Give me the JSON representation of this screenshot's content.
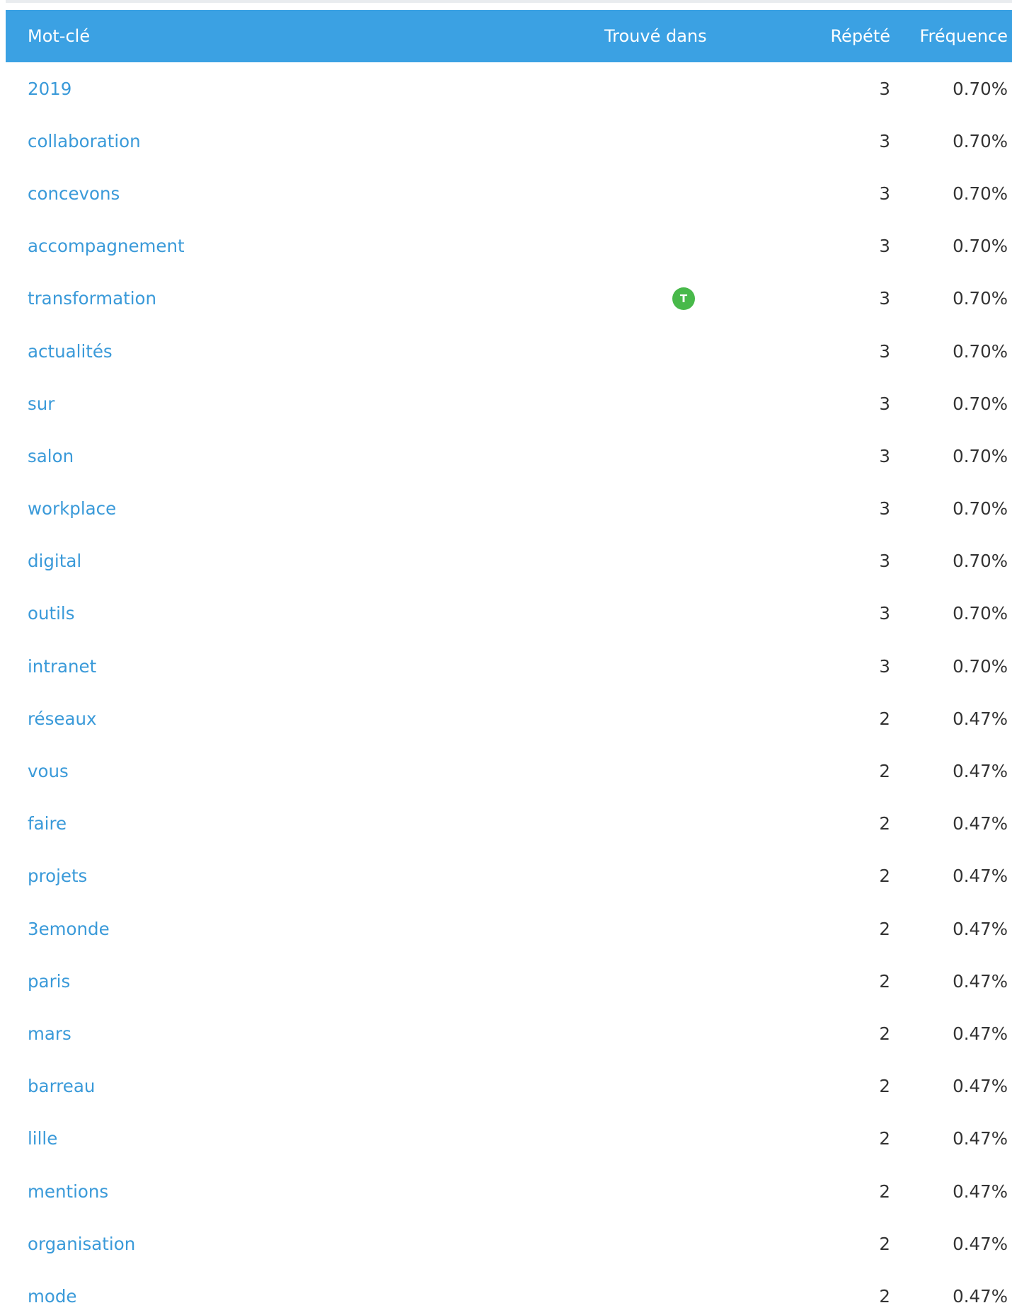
{
  "table": {
    "headers": {
      "keyword": "Mot-clé",
      "found_in": "Trouvé dans",
      "repeated": "Répété",
      "frequency": "Fréquence"
    },
    "rows": [
      {
        "keyword": "2019",
        "found_in": "",
        "repeated": "3",
        "frequency": "0.70%"
      },
      {
        "keyword": "collaboration",
        "found_in": "",
        "repeated": "3",
        "frequency": "0.70%"
      },
      {
        "keyword": "concevons",
        "found_in": "",
        "repeated": "3",
        "frequency": "0.70%"
      },
      {
        "keyword": "accompagnement",
        "found_in": "",
        "repeated": "3",
        "frequency": "0.70%"
      },
      {
        "keyword": "transformation",
        "found_in": "T",
        "repeated": "3",
        "frequency": "0.70%"
      },
      {
        "keyword": "actualités",
        "found_in": "",
        "repeated": "3",
        "frequency": "0.70%"
      },
      {
        "keyword": "sur",
        "found_in": "",
        "repeated": "3",
        "frequency": "0.70%"
      },
      {
        "keyword": "salon",
        "found_in": "",
        "repeated": "3",
        "frequency": "0.70%"
      },
      {
        "keyword": "workplace",
        "found_in": "",
        "repeated": "3",
        "frequency": "0.70%"
      },
      {
        "keyword": "digital",
        "found_in": "",
        "repeated": "3",
        "frequency": "0.70%"
      },
      {
        "keyword": "outils",
        "found_in": "",
        "repeated": "3",
        "frequency": "0.70%"
      },
      {
        "keyword": "intranet",
        "found_in": "",
        "repeated": "3",
        "frequency": "0.70%"
      },
      {
        "keyword": "réseaux",
        "found_in": "",
        "repeated": "2",
        "frequency": "0.47%"
      },
      {
        "keyword": "vous",
        "found_in": "",
        "repeated": "2",
        "frequency": "0.47%"
      },
      {
        "keyword": "faire",
        "found_in": "",
        "repeated": "2",
        "frequency": "0.47%"
      },
      {
        "keyword": "projets",
        "found_in": "",
        "repeated": "2",
        "frequency": "0.47%"
      },
      {
        "keyword": "3emonde",
        "found_in": "",
        "repeated": "2",
        "frequency": "0.47%"
      },
      {
        "keyword": "paris",
        "found_in": "",
        "repeated": "2",
        "frequency": "0.47%"
      },
      {
        "keyword": "mars",
        "found_in": "",
        "repeated": "2",
        "frequency": "0.47%"
      },
      {
        "keyword": "barreau",
        "found_in": "",
        "repeated": "2",
        "frequency": "0.47%"
      },
      {
        "keyword": "lille",
        "found_in": "",
        "repeated": "2",
        "frequency": "0.47%"
      },
      {
        "keyword": "mentions",
        "found_in": "",
        "repeated": "2",
        "frequency": "0.47%"
      },
      {
        "keyword": "organisation",
        "found_in": "",
        "repeated": "2",
        "frequency": "0.47%"
      },
      {
        "keyword": "mode",
        "found_in": "",
        "repeated": "2",
        "frequency": "0.47%"
      }
    ]
  },
  "colors": {
    "header_bg": "#3ba1e3",
    "link": "#3a9ad9",
    "badge_title": "#48b94a"
  }
}
